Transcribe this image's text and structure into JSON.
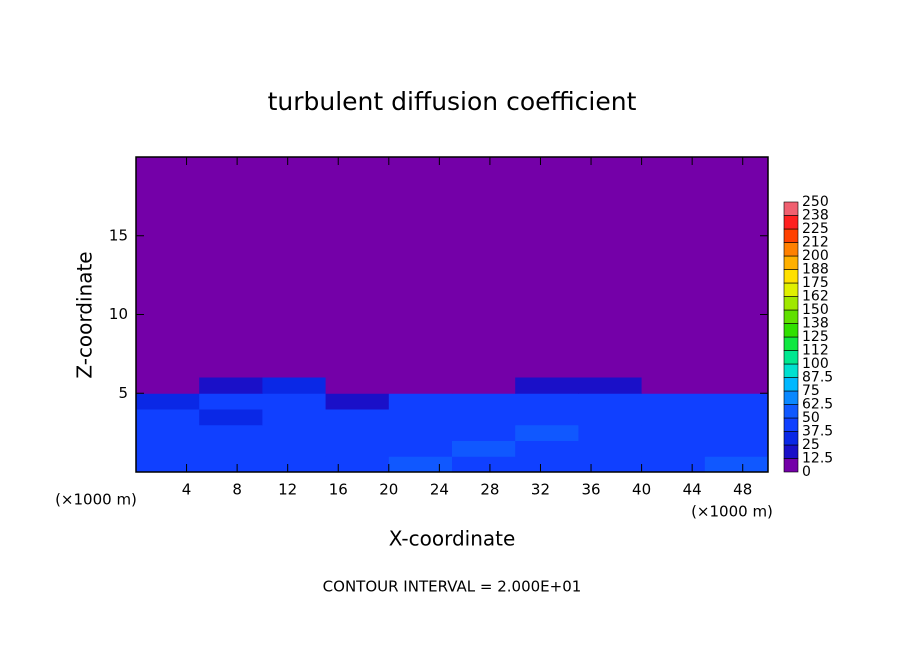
{
  "chart_data": {
    "type": "heatmap",
    "title": "turbulent diffusion coefficient",
    "x_label": "X-coordinate",
    "y_label": "Z-coordinate",
    "x_unit": "(×1000 m)",
    "y_unit": "(×1000 m)",
    "footer": "CONTOUR INTERVAL = 2.000E+01",
    "xlim": [
      0,
      50
    ],
    "ylim": [
      0,
      20
    ],
    "xticks": [
      4,
      8,
      12,
      16,
      20,
      24,
      28,
      32,
      36,
      40,
      44,
      48
    ],
    "yticks": [
      5,
      10,
      15
    ],
    "xbins": [
      0,
      5,
      10,
      15,
      20,
      25,
      30,
      35,
      40,
      45,
      50
    ],
    "ybins": [
      0,
      1,
      2,
      3,
      4,
      5,
      6
    ],
    "z": [
      [
        45,
        40,
        45,
        40,
        50,
        45,
        40,
        45,
        40,
        50
      ],
      [
        40,
        45,
        40,
        45,
        40,
        50,
        45,
        40,
        45,
        40
      ],
      [
        40,
        40,
        45,
        45,
        40,
        45,
        50,
        40,
        40,
        45
      ],
      [
        40,
        35,
        40,
        40,
        45,
        40,
        40,
        40,
        45,
        40
      ],
      [
        30,
        40,
        40,
        20,
        40,
        40,
        40,
        40,
        40,
        40
      ],
      [
        0,
        20,
        30,
        0,
        0,
        10,
        20,
        20,
        10,
        0
      ]
    ],
    "background_color": "#7400a8",
    "levels": [
      0,
      12.5,
      25,
      37.5,
      50,
      62.5,
      75,
      87.5,
      100,
      112,
      125,
      138,
      150,
      162,
      175,
      188,
      200,
      212,
      225,
      238,
      250
    ],
    "level_colors": [
      "#7400a8",
      "#1a10c8",
      "#0a28e6",
      "#1040ff",
      "#1058ff",
      "#0a88ff",
      "#00b8ff",
      "#00e0d0",
      "#00e890",
      "#10e840",
      "#30e000",
      "#60e000",
      "#a0e800",
      "#e0f000",
      "#ffe000",
      "#ffb000",
      "#ff8000",
      "#ff4000",
      "#ff2020",
      "#f06070"
    ]
  }
}
